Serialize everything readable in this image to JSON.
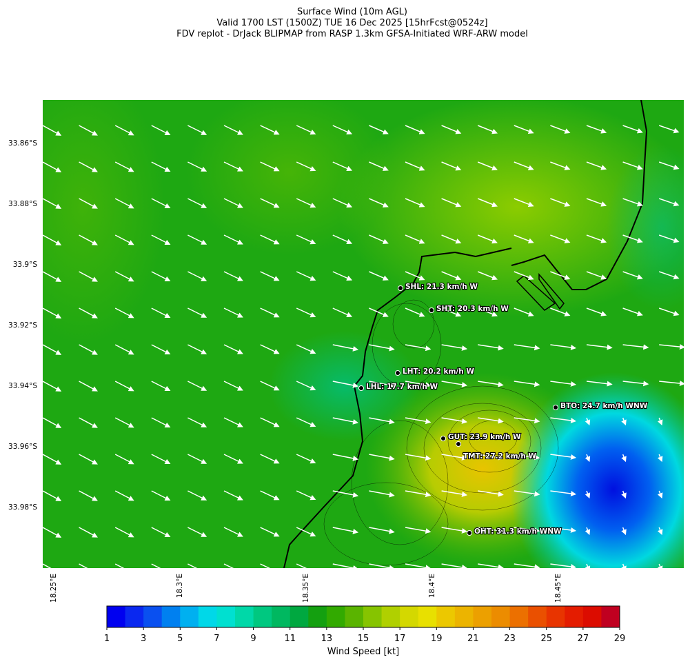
{
  "title": [
    "Surface Wind (10m AGL)",
    "Valid 1700 LST (1500Z) TUE 16 Dec 2025 [15hrFcst@0524z]",
    "FDV replot - DrJack BLIPMAP from RASP 1.3km GFSA-Initiated WRF-ARW model"
  ],
  "map": {
    "lat_labels": [
      "33.86°S",
      "33.88°S",
      "33.9°S",
      "33.92°S",
      "33.94°S",
      "33.96°S",
      "33.98°S"
    ],
    "lon_labels": [
      "18.25°E",
      "18.3°E",
      "18.35°E",
      "18.4°E",
      "18.45°E"
    ],
    "stations": [
      {
        "label": "SHL: 21.3 km/h W"
      },
      {
        "label": "SHT: 20.3 km/h W"
      },
      {
        "label": "LHT: 20.2 km/h W"
      },
      {
        "label": "LHL: 17.7 km/h W"
      },
      {
        "label": "BTO: 24.7 km/h WNW"
      },
      {
        "label": "GUT: 23.9 km/h W"
      },
      {
        "label": "TMT: 27.2 km/h W"
      },
      {
        "label": "OHT: 31.3 km/h WNW"
      }
    ]
  },
  "colorbar": {
    "ticks": [
      1,
      3,
      5,
      7,
      9,
      11,
      13,
      15,
      17,
      19,
      21,
      23,
      25,
      27,
      29
    ],
    "label": "Wind Speed [kt]",
    "colors": [
      "#0000f0",
      "#0a28f0",
      "#0a50f0",
      "#0080f0",
      "#00b0f0",
      "#00d8e8",
      "#00e0d0",
      "#00d8a8",
      "#00c880",
      "#00b860",
      "#00a840",
      "#14a010",
      "#32aa00",
      "#5ab400",
      "#86c400",
      "#b0d000",
      "#d4d800",
      "#e8e000",
      "#ecc800",
      "#ecb400",
      "#eca000",
      "#ec8c00",
      "#ec7000",
      "#ea5000",
      "#e83400",
      "#e41c00",
      "#dc0c00",
      "#c00020"
    ]
  }
}
